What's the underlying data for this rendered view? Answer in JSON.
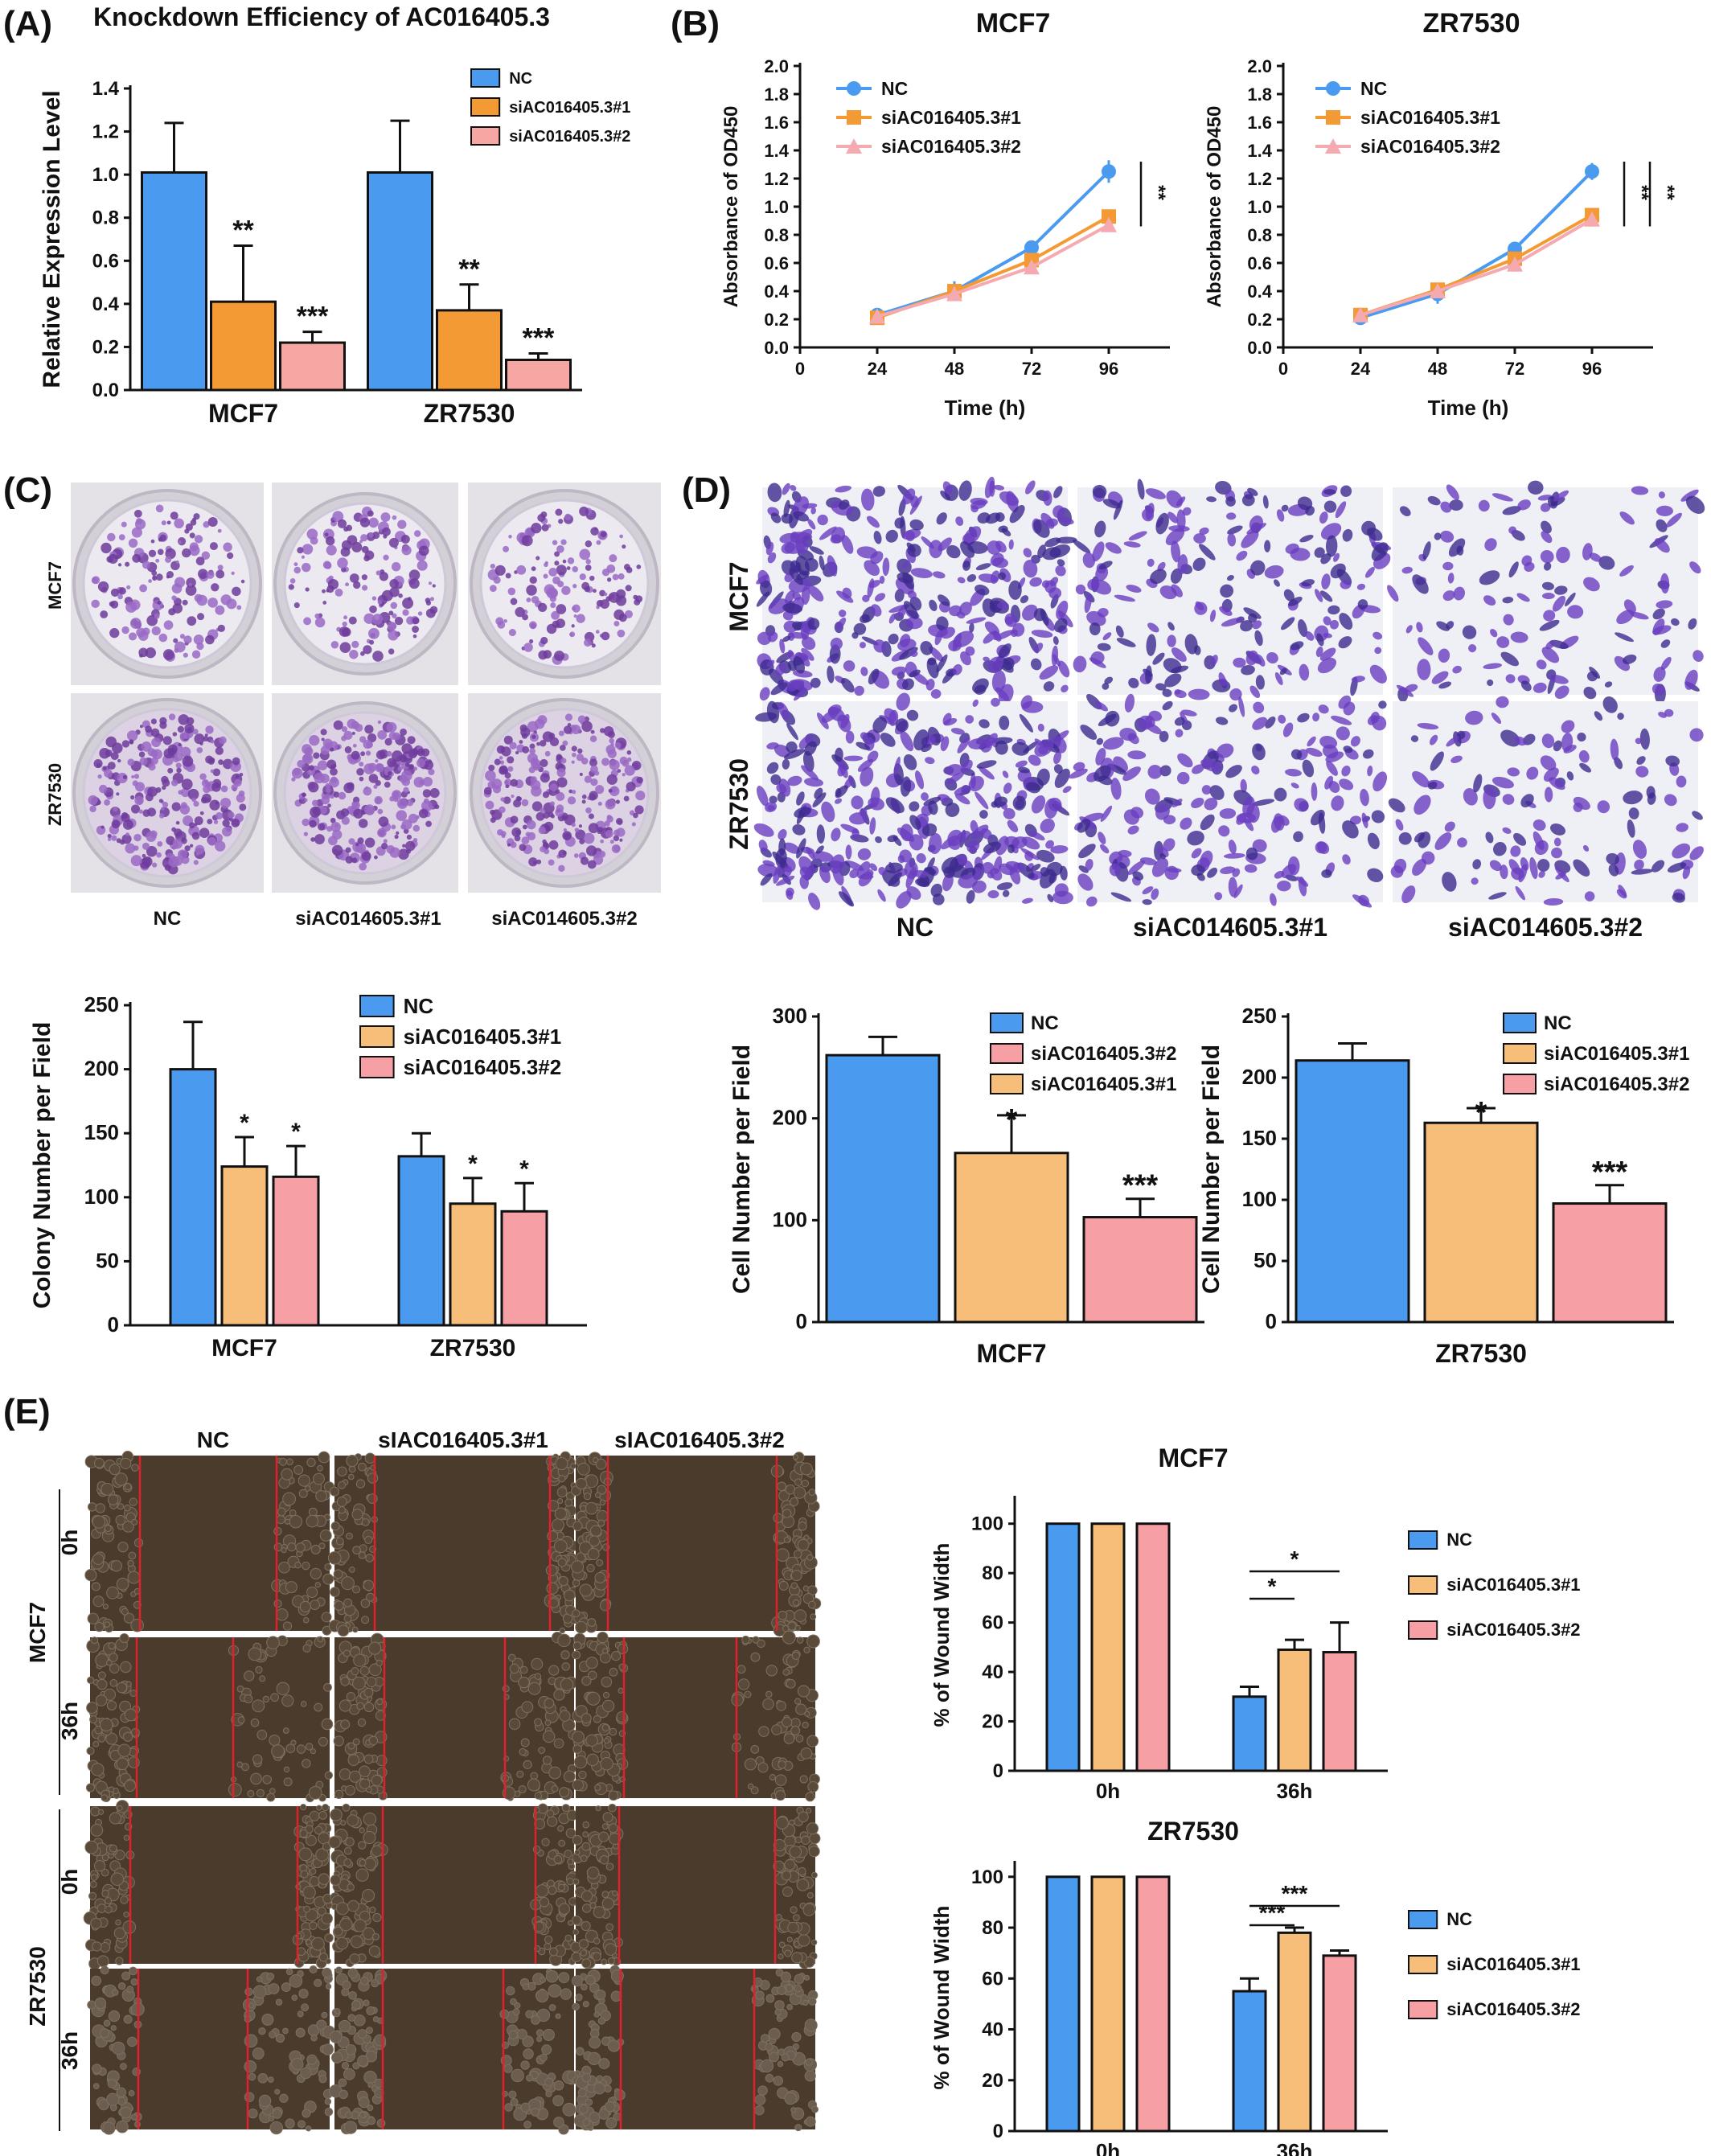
{
  "colors": {
    "nc_blue": "#4A9BEF",
    "orange": "#F39A35",
    "pink": "#F7A7A3",
    "light_orange": "#F7BE7A",
    "light_pink": "#F6A0A6",
    "line_pink": "#F5A9B0",
    "purple": "#7B4FB8",
    "wound_bg": "#4A3B2C",
    "wound_red": "#E0202A"
  },
  "panels": {
    "A": "(A)",
    "B": "(B)",
    "C": "(C)",
    "D": "(D)",
    "E": "(E)"
  },
  "panelC": {
    "row_labels": [
      "MCF7",
      "ZR7530"
    ],
    "col_labels": [
      "NC",
      "siAC014605.3#1",
      "siAC014605.3#2"
    ]
  },
  "panelD": {
    "row_labels": [
      "MCF7",
      "ZR7530"
    ],
    "col_labels": [
      "NC",
      "siAC014605.3#1",
      "siAC014605.3#2"
    ]
  },
  "panelE": {
    "col_labels": [
      "NC",
      "sIAC016405.3#1",
      "sIAC016405.3#2"
    ],
    "group_labels": [
      "MCF7",
      "ZR7530"
    ],
    "time_labels": [
      "0h",
      "36h",
      "0h",
      "36h"
    ]
  },
  "chart_data": [
    {
      "id": "chartA",
      "type": "bar",
      "title": "Knockdown Efficiency of AC016405.3",
      "xlabel": "",
      "ylabel": "Relative Expression Level",
      "categories": [
        "MCF7",
        "ZR7530"
      ],
      "ylim": [
        0,
        1.4
      ],
      "yticks": [
        "0.0",
        "0.2",
        "0.4",
        "0.6",
        "0.8",
        "1.0",
        "1.2",
        "1.4"
      ],
      "series": [
        {
          "name": "NC",
          "color": "#4A9BEF",
          "values": [
            1.01,
            1.01
          ],
          "errors": [
            0.23,
            0.24
          ],
          "sig": [
            "",
            ""
          ]
        },
        {
          "name": "siAC016405.3#1",
          "color": "#F39A35",
          "values": [
            0.41,
            0.37
          ],
          "errors": [
            0.26,
            0.12
          ],
          "sig": [
            "**",
            "**"
          ]
        },
        {
          "name": "siAC016405.3#2",
          "color": "#F7A7A3",
          "values": [
            0.22,
            0.14
          ],
          "errors": [
            0.05,
            0.03
          ],
          "sig": [
            "***",
            "***"
          ]
        }
      ],
      "legend": "top-right"
    },
    {
      "id": "chartB1",
      "type": "line",
      "title": "MCF7",
      "xlabel": "Time (h)",
      "ylabel": "Absorbance of OD450",
      "x": [
        24,
        48,
        72,
        96
      ],
      "xticks": [
        "0",
        "24",
        "48",
        "72",
        "96"
      ],
      "xlim": [
        0,
        115
      ],
      "ylim": [
        0,
        2.0
      ],
      "yticks": [
        "0.0",
        "0.2",
        "0.4",
        "0.6",
        "0.8",
        "1.0",
        "1.2",
        "1.4",
        "1.6",
        "1.8",
        "2.0"
      ],
      "series": [
        {
          "name": "NC",
          "color": "#4A9BEF",
          "marker": "circle",
          "values": [
            0.23,
            0.4,
            0.71,
            1.25
          ],
          "errors": [
            0.02,
            0.07,
            0.03,
            0.08
          ]
        },
        {
          "name": "siAC016405.3#1",
          "color": "#F39A35",
          "marker": "square",
          "values": [
            0.21,
            0.4,
            0.62,
            0.93
          ],
          "errors": [
            0.02,
            0.04,
            0.03,
            0.04
          ]
        },
        {
          "name": "siAC016405.3#2",
          "color": "#F5A9B0",
          "marker": "triangle",
          "values": [
            0.22,
            0.38,
            0.57,
            0.87
          ],
          "errors": [
            0.02,
            0.03,
            0.03,
            0.03
          ]
        }
      ],
      "sig": [
        "**"
      ],
      "legend": "top-left"
    },
    {
      "id": "chartB2",
      "type": "line",
      "title": "ZR7530",
      "xlabel": "Time (h)",
      "ylabel": "Absorbance of OD450",
      "x": [
        24,
        48,
        72,
        96
      ],
      "xticks": [
        "0",
        "24",
        "48",
        "72",
        "96"
      ],
      "xlim": [
        0,
        115
      ],
      "ylim": [
        0,
        2.0
      ],
      "yticks": [
        "0.0",
        "0.2",
        "0.4",
        "0.6",
        "0.8",
        "1.0",
        "1.2",
        "1.4",
        "1.6",
        "1.8",
        "2.0"
      ],
      "series": [
        {
          "name": "NC",
          "color": "#4A9BEF",
          "marker": "circle",
          "values": [
            0.21,
            0.38,
            0.7,
            1.25
          ],
          "errors": [
            0.03,
            0.07,
            0.03,
            0.06
          ]
        },
        {
          "name": "siAC016405.3#1",
          "color": "#F39A35",
          "marker": "square",
          "values": [
            0.23,
            0.41,
            0.63,
            0.94
          ],
          "errors": [
            0.02,
            0.04,
            0.03,
            0.04
          ]
        },
        {
          "name": "siAC016405.3#2",
          "color": "#F5A9B0",
          "marker": "triangle",
          "values": [
            0.23,
            0.4,
            0.59,
            0.91
          ],
          "errors": [
            0.02,
            0.03,
            0.03,
            0.03
          ]
        }
      ],
      "sig": [
        "**",
        "**"
      ],
      "legend": "top-left"
    },
    {
      "id": "chartC",
      "type": "bar",
      "title": "",
      "xlabel": "",
      "ylabel": "Colony Number per Field",
      "categories": [
        "MCF7",
        "ZR7530"
      ],
      "ylim": [
        0,
        250
      ],
      "yticks": [
        "0",
        "50",
        "100",
        "150",
        "200",
        "250"
      ],
      "series": [
        {
          "name": "NC",
          "color": "#4A9BEF",
          "values": [
            200,
            132
          ],
          "errors": [
            37,
            18
          ],
          "sig": [
            "",
            ""
          ]
        },
        {
          "name": "siAC016405.3#1",
          "color": "#F7BE7A",
          "values": [
            124,
            95
          ],
          "errors": [
            23,
            20
          ],
          "sig": [
            "*",
            "*"
          ]
        },
        {
          "name": "siAC016405.3#2",
          "color": "#F6A0A6",
          "values": [
            116,
            89
          ],
          "errors": [
            24,
            22
          ],
          "sig": [
            "*",
            "*"
          ]
        }
      ],
      "legend": "top-right"
    },
    {
      "id": "chartD1",
      "type": "bar",
      "title": "",
      "xlabel": "MCF7",
      "ylabel": "Cell Number per Field",
      "categories": [
        "NC",
        "siAC016405.3#1",
        "siAC016405.3#2"
      ],
      "ylim": [
        0,
        300
      ],
      "yticks": [
        "0",
        "100",
        "200",
        "300"
      ],
      "values": [
        262,
        166,
        103
      ],
      "errors": [
        18,
        37,
        18
      ],
      "sig": [
        "",
        "*",
        "***"
      ],
      "bar_colors": [
        "#4A9BEF",
        "#F7BE7A",
        "#F6A0A6"
      ],
      "legend_entries": [
        {
          "name": "NC",
          "color": "#4A9BEF"
        },
        {
          "name": "siAC016405.3#2",
          "color": "#F6A0A6"
        },
        {
          "name": "siAC016405.3#1",
          "color": "#F7BE7A"
        }
      ],
      "legend": "top-right"
    },
    {
      "id": "chartD2",
      "type": "bar",
      "title": "",
      "xlabel": "ZR7530",
      "ylabel": "Cell Number per Field",
      "categories": [
        "NC",
        "siAC016405.3#1",
        "siAC016405.3#2"
      ],
      "ylim": [
        0,
        250
      ],
      "yticks": [
        "0",
        "50",
        "100",
        "150",
        "200",
        "250"
      ],
      "values": [
        214,
        163,
        97
      ],
      "errors": [
        14,
        12,
        15
      ],
      "sig": [
        "",
        "*",
        "***"
      ],
      "bar_colors": [
        "#4A9BEF",
        "#F7BE7A",
        "#F6A0A6"
      ],
      "legend_entries": [
        {
          "name": "NC",
          "color": "#4A9BEF"
        },
        {
          "name": "siAC016405.3#1",
          "color": "#F7BE7A"
        },
        {
          "name": "siAC016405.3#2",
          "color": "#F6A0A6"
        }
      ],
      "legend": "top-right"
    },
    {
      "id": "chartE1",
      "type": "bar",
      "title": "MCF7",
      "xlabel": "",
      "ylabel": "% of Wound Width",
      "categories": [
        "0h",
        "36h"
      ],
      "ylim": [
        0,
        110
      ],
      "yticks": [
        "0",
        "20",
        "40",
        "60",
        "80",
        "100"
      ],
      "series": [
        {
          "name": "NC",
          "color": "#4A9BEF",
          "values": [
            100,
            30
          ],
          "errors": [
            0,
            4
          ]
        },
        {
          "name": "siAC016405.3#1",
          "color": "#F7BE7A",
          "values": [
            100,
            49
          ],
          "errors": [
            0,
            4
          ]
        },
        {
          "name": "siAC016405.3#2",
          "color": "#F6A0A6",
          "values": [
            100,
            48
          ],
          "errors": [
            0,
            12
          ]
        }
      ],
      "brackets": [
        {
          "from": 0,
          "to": 1,
          "label": "*"
        },
        {
          "from": 0,
          "to": 2,
          "label": "*"
        }
      ],
      "legend": "right"
    },
    {
      "id": "chartE2",
      "type": "bar",
      "title": "ZR7530",
      "xlabel": "",
      "ylabel": "% of Wound Width",
      "categories": [
        "0h",
        "36h"
      ],
      "ylim": [
        0,
        105
      ],
      "yticks": [
        "0",
        "20",
        "40",
        "60",
        "80",
        "100"
      ],
      "series": [
        {
          "name": "NC",
          "color": "#4A9BEF",
          "values": [
            100,
            55
          ],
          "errors": [
            0,
            5
          ]
        },
        {
          "name": "siAC016405.3#1",
          "color": "#F7BE7A",
          "values": [
            100,
            78
          ],
          "errors": [
            0,
            2
          ]
        },
        {
          "name": "siAC016405.3#2",
          "color": "#F6A0A6",
          "values": [
            100,
            69
          ],
          "errors": [
            0,
            2
          ]
        }
      ],
      "brackets": [
        {
          "from": 0,
          "to": 1,
          "label": "***"
        },
        {
          "from": 0,
          "to": 2,
          "label": "***"
        }
      ],
      "legend": "right"
    }
  ]
}
